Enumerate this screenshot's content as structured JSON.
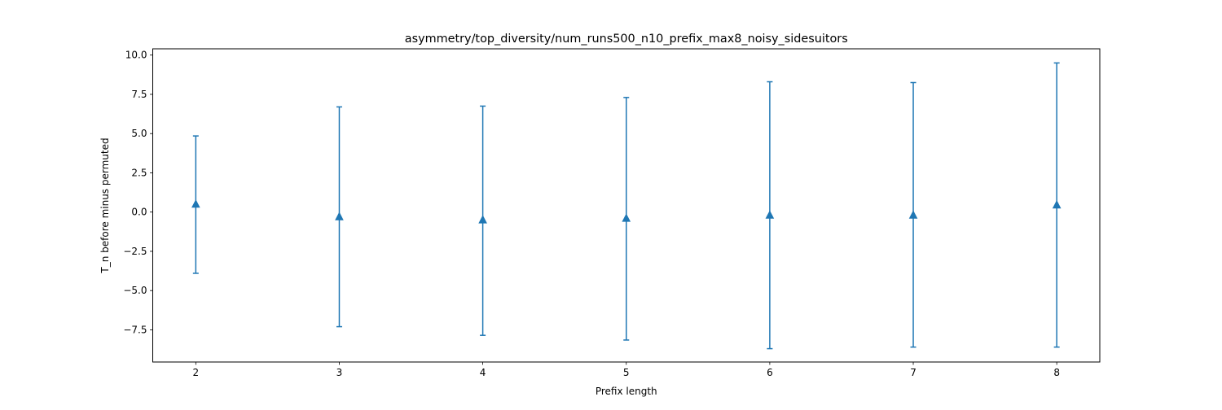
{
  "chart_data": {
    "type": "errorbar",
    "title": "asymmetry/top_diversity/num_runs500_n10_prefix_max8_noisy_sidesuitors",
    "xlabel": "Prefix length",
    "ylabel": "T_n before minus permuted",
    "x": [
      2,
      3,
      4,
      5,
      6,
      7,
      8
    ],
    "y": [
      0.5,
      -0.3,
      -0.5,
      -0.4,
      -0.2,
      -0.2,
      0.45
    ],
    "y_low": [
      -3.9,
      -7.3,
      -7.85,
      -8.15,
      -8.7,
      -8.6,
      -8.6
    ],
    "y_high": [
      4.85,
      6.7,
      6.75,
      7.3,
      8.3,
      8.25,
      9.5
    ],
    "xticks": [
      2,
      3,
      4,
      5,
      6,
      7,
      8
    ],
    "xtick_labels": [
      "2",
      "3",
      "4",
      "5",
      "6",
      "7",
      "8"
    ],
    "yticks": [
      -7.5,
      -5.0,
      -2.5,
      0.0,
      2.5,
      5.0,
      7.5,
      10.0
    ],
    "ytick_labels": [
      "−7.5",
      "−5.0",
      "−2.5",
      "0.0",
      "2.5",
      "5.0",
      "7.5",
      "10.0"
    ],
    "xlim": [
      1.7,
      8.3
    ],
    "ylim": [
      -9.55,
      10.4
    ],
    "marker": "triangle-up",
    "grid": false,
    "color": "#1f77b4"
  }
}
